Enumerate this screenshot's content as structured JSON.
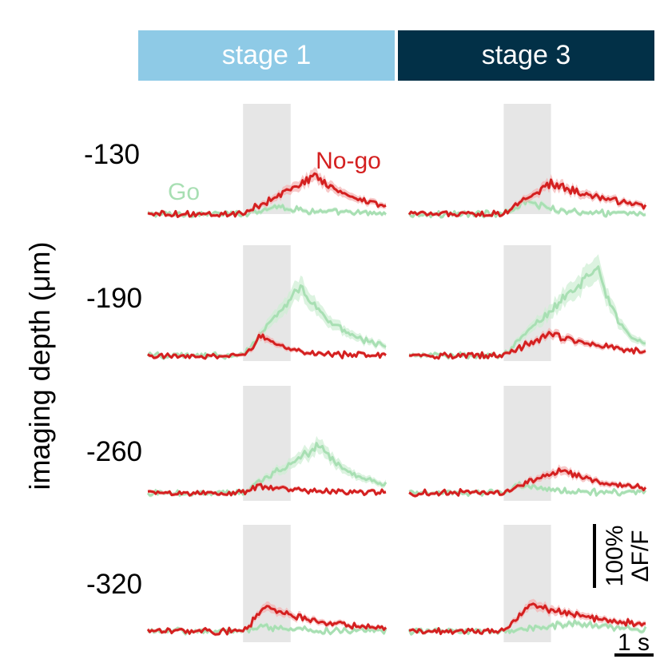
{
  "chart_data": {
    "type": "line",
    "ylabel": "imaging depth (μm)",
    "columns": [
      {
        "label": "stage 1",
        "color": "#8ecae6"
      },
      {
        "label": "stage 3",
        "color": "#023047"
      }
    ],
    "rows": [
      {
        "depth": "-130"
      },
      {
        "depth": "-190"
      },
      {
        "depth": "-260"
      },
      {
        "depth": "-320"
      }
    ],
    "legend": {
      "go": "Go",
      "nogo": "No-go"
    },
    "series_colors": {
      "go": "#a8dfb3",
      "go_band": "#cdeed3",
      "nogo": "#d42020",
      "nogo_band": "#f4b0b0",
      "stimulus": "#e6e6e6"
    },
    "scalebar": {
      "y_label": "100%",
      "y_unit": "ΔF/F",
      "x_label": "1 s"
    },
    "time_window_s": [
      -2,
      3
    ],
    "stimulus_window_s": [
      0,
      1
    ],
    "panels": [
      {
        "stage": "stage 1",
        "depth": "-130",
        "go_peak": 0.18,
        "go_peak_t": 0.7,
        "go_decay_s": 0.8,
        "nogo_peak": 0.85,
        "nogo_peak_t": 1.5,
        "nogo_decay_s": 1.0
      },
      {
        "stage": "stage 3",
        "depth": "-130",
        "go_peak": 0.3,
        "go_peak_t": 0.5,
        "go_decay_s": 0.6,
        "nogo_peak": 0.7,
        "nogo_peak_t": 1.0,
        "nogo_decay_s": 1.6
      },
      {
        "stage": "stage 1",
        "depth": "-190",
        "go_peak": 1.55,
        "go_peak_t": 1.2,
        "go_decay_s": 0.9,
        "nogo_peak": 0.45,
        "nogo_peak_t": 0.4,
        "nogo_decay_s": 0.5
      },
      {
        "stage": "stage 3",
        "depth": "-190",
        "go_peak": 2.0,
        "go_peak_t": 2.0,
        "go_decay_s": 0.45,
        "nogo_peak": 0.5,
        "nogo_peak_t": 1.0,
        "nogo_decay_s": 1.2
      },
      {
        "stage": "stage 1",
        "depth": "-260",
        "go_peak": 1.05,
        "go_peak_t": 1.6,
        "go_decay_s": 0.8,
        "nogo_peak": 0.15,
        "nogo_peak_t": 0.3,
        "nogo_decay_s": 1.0
      },
      {
        "stage": "stage 3",
        "depth": "-260",
        "go_peak": 0.2,
        "go_peak_t": 0.3,
        "go_decay_s": 0.6,
        "nogo_peak": 0.5,
        "nogo_peak_t": 1.2,
        "nogo_decay_s": 1.2
      },
      {
        "stage": "stage 1",
        "depth": "-320",
        "go_peak": 0.1,
        "go_peak_t": 0.5,
        "go_decay_s": 0.6,
        "nogo_peak": 0.55,
        "nogo_peak_t": 0.5,
        "nogo_decay_s": 1.2
      },
      {
        "stage": "stage 3",
        "depth": "-320",
        "go_peak": 0.18,
        "go_peak_t": 1.5,
        "go_decay_s": 1.0,
        "nogo_peak": 0.6,
        "nogo_peak_t": 0.6,
        "nogo_decay_s": 1.8
      }
    ]
  }
}
